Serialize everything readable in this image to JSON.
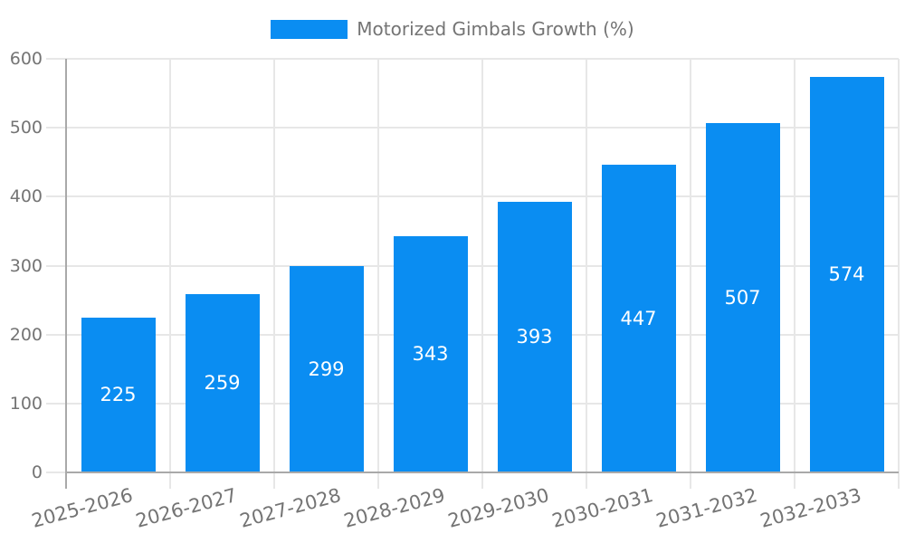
{
  "legend": {
    "label": "Motorized Gimbals Growth (%)"
  },
  "chart_data": {
    "type": "bar",
    "title": "",
    "series_name": "Motorized Gimbals Growth (%)",
    "categories": [
      "2025-2026",
      "2026-2027",
      "2027-2028",
      "2028-2029",
      "2029-2030",
      "2030-2031",
      "2031-2032",
      "2032-2033"
    ],
    "values": [
      225,
      259,
      299,
      343,
      393,
      447,
      507,
      574
    ],
    "xlabel": "",
    "ylabel": "",
    "ylim": [
      0,
      600
    ],
    "yticks": [
      0,
      100,
      200,
      300,
      400,
      500,
      600
    ],
    "grid": true,
    "legend_position": "top-center",
    "bar_label_position": "center",
    "colors": {
      "bar": "#0A8DF2",
      "bar_label": "#FFFFFF",
      "axis_line": "#A9A9A9",
      "gridline": "#E7E7E7",
      "tick_label": "#747474",
      "legend_text": "#747474"
    }
  }
}
